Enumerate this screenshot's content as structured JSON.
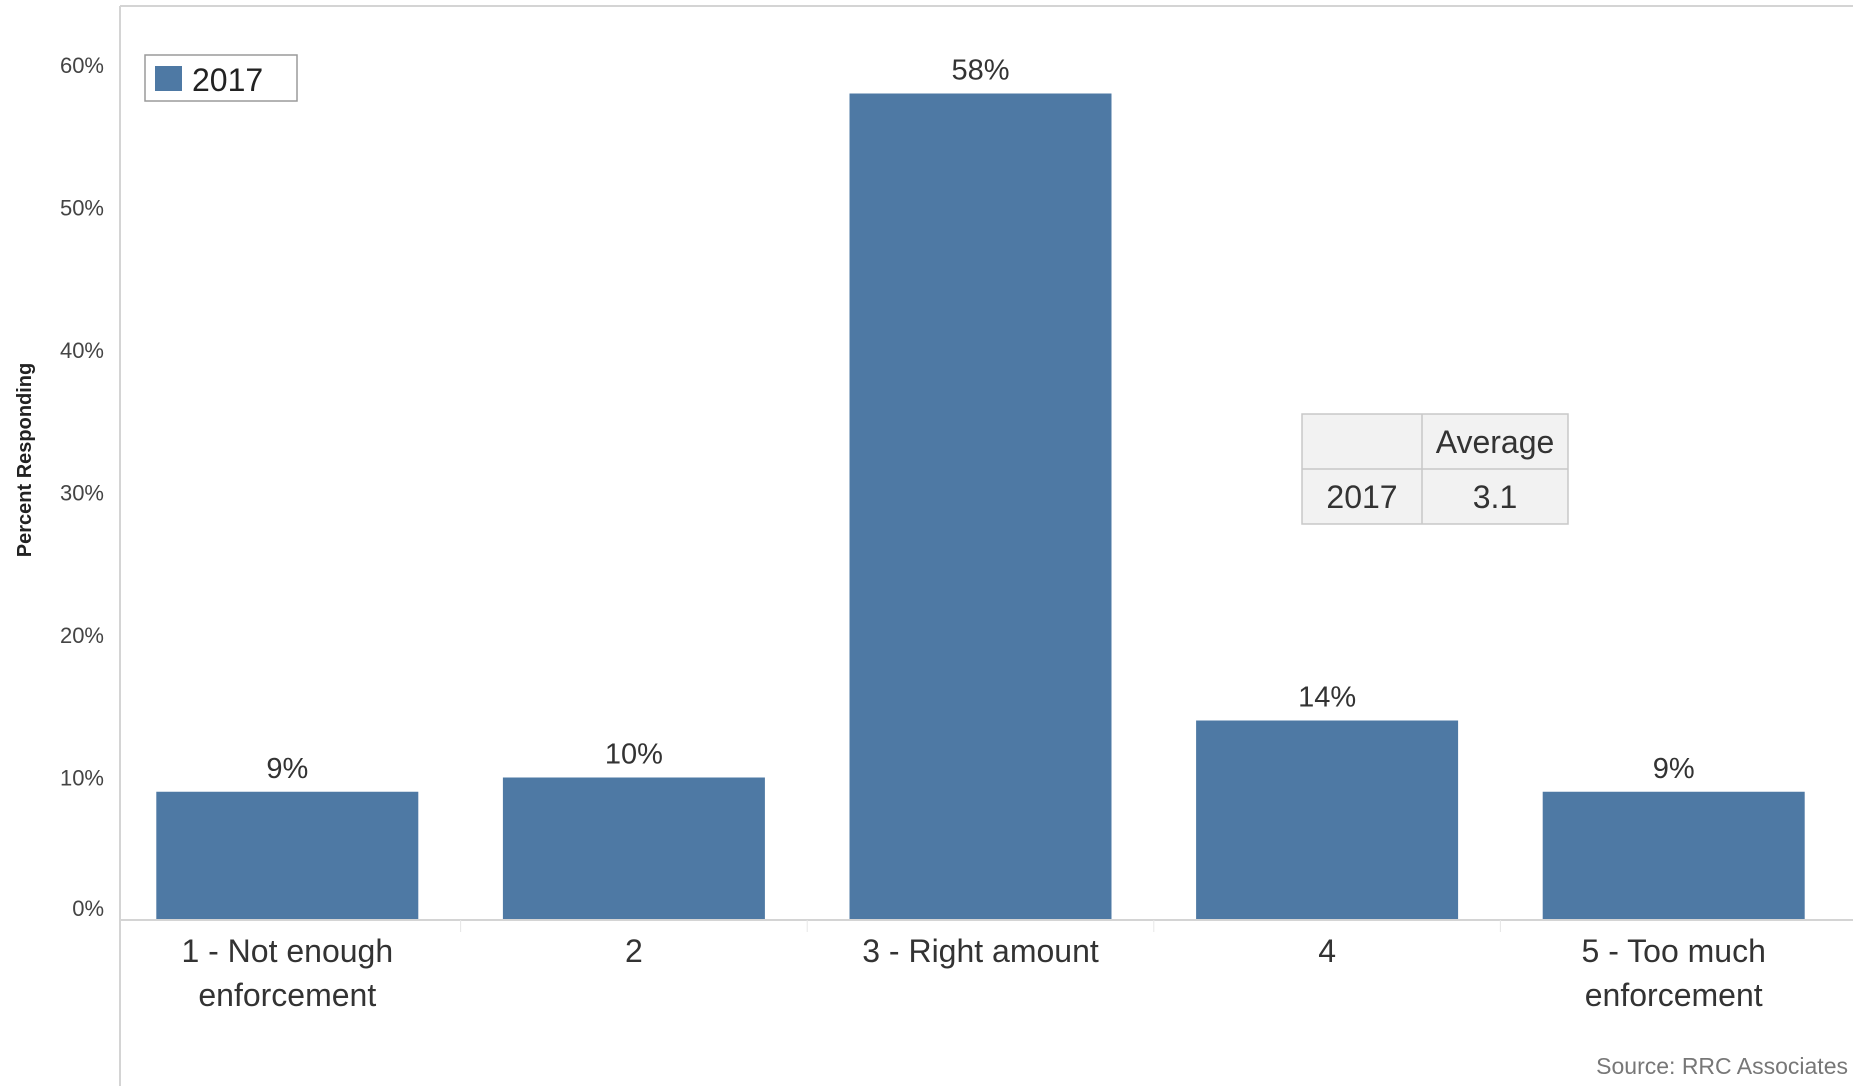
{
  "chart_data": {
    "type": "bar",
    "categories": [
      [
        "1 - Not enough",
        "enforcement"
      ],
      [
        "2"
      ],
      [
        "3 - Right amount"
      ],
      [
        "4"
      ],
      [
        "5 - Too much",
        "enforcement"
      ]
    ],
    "series": [
      {
        "name": "2017",
        "values": [
          9,
          10,
          58,
          14,
          9
        ],
        "labels": [
          "9%",
          "10%",
          "58%",
          "14%",
          "9%"
        ],
        "color": "#4e79a4"
      }
    ],
    "ylabel": "Percent Responding",
    "y_ticks": [
      "0%",
      "10%",
      "20%",
      "30%",
      "40%",
      "50%",
      "60%"
    ],
    "y_tick_values": [
      0,
      10,
      20,
      30,
      40,
      50,
      60
    ],
    "ylim": [
      0,
      62
    ],
    "grid": false,
    "legend": {
      "placement": "top-left",
      "entries": [
        "2017"
      ]
    },
    "summary_table": {
      "header": [
        "",
        "Average"
      ],
      "rows": [
        [
          "2017",
          "3.1"
        ]
      ]
    },
    "source": "Source: RRC Associates"
  },
  "colors": {
    "bar": "#4e79a4",
    "axis": "#d4d4d4",
    "table_border": "#c8c8c8",
    "table_fill": "#f2f2f2"
  }
}
